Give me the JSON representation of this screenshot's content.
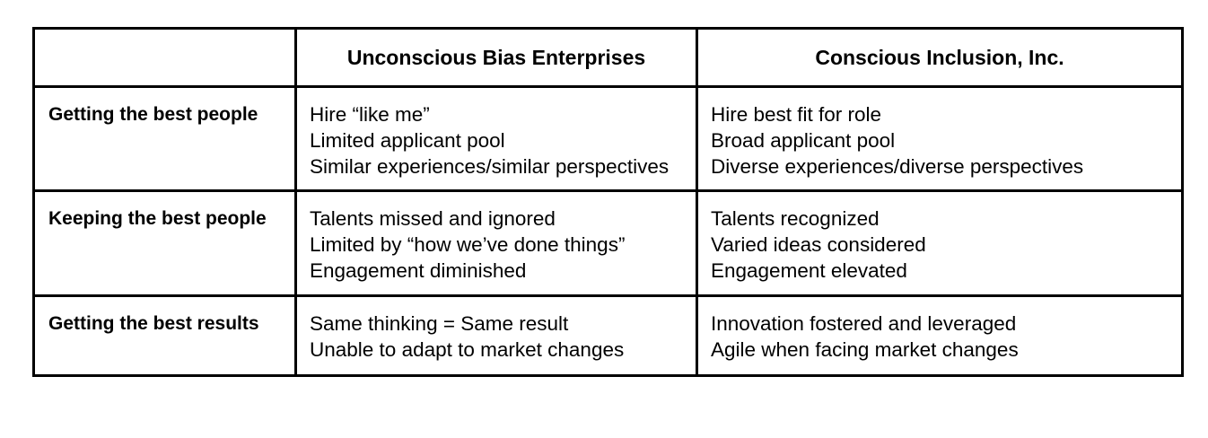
{
  "header": {
    "empty": "",
    "col1": "Unconscious Bias Enterprises",
    "col2": "Conscious Inclusion, Inc."
  },
  "rows": [
    {
      "label": "Getting the best people",
      "col1": [
        "Hire “like me”",
        "Limited applicant pool",
        "Similar experiences/similar perspectives"
      ],
      "col2": [
        "Hire best fit for role",
        "Broad applicant pool",
        "Diverse experiences/diverse perspectives"
      ]
    },
    {
      "label": "Keeping the best people",
      "col1": [
        "Talents missed and ignored",
        "Limited by “how we’ve done things”",
        "Engagement diminished"
      ],
      "col2": [
        "Talents recognized",
        "Varied ideas considered",
        "Engagement elevated"
      ]
    },
    {
      "label": "Getting the best results",
      "col1": [
        "Same thinking = Same result",
        "Unable to adapt to market changes"
      ],
      "col2": [
        "Innovation fostered and leveraged",
        "Agile when facing market changes"
      ]
    }
  ]
}
